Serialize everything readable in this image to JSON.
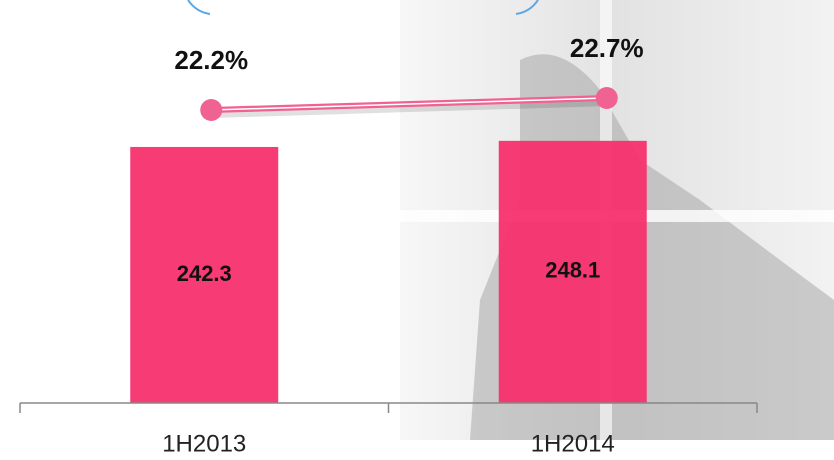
{
  "chart_data": {
    "type": "bar_line",
    "categories": [
      "1H2013",
      "1H2014"
    ],
    "series": [
      {
        "type": "bar",
        "color": "#f7306e",
        "values": [
          242.3,
          248.1
        ]
      },
      {
        "type": "line",
        "axis": "y2",
        "color": "#f06292",
        "values": [
          22.2,
          22.7
        ],
        "value_labels": [
          "22.2%",
          "22.7%"
        ]
      }
    ],
    "ylim": [
      0,
      300
    ],
    "y2lim": [
      10,
      23.2
    ]
  }
}
